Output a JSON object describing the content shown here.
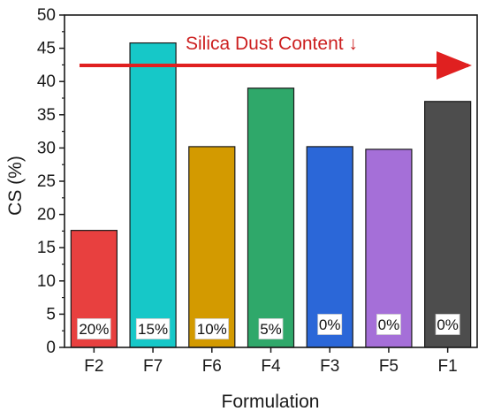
{
  "chart_data": {
    "type": "bar",
    "categories": [
      "F2",
      "F7",
      "F6",
      "F4",
      "F3",
      "F5",
      "F1"
    ],
    "values": [
      17.6,
      45.8,
      30.2,
      39.0,
      30.2,
      29.8,
      37.0
    ],
    "data_labels": [
      "20%",
      "15%",
      "10%",
      "5%",
      "0%",
      "0%",
      "0%"
    ],
    "bar_colors": [
      "#e8403f",
      "#16c8c8",
      "#d39a00",
      "#2fa86a",
      "#2b67d8",
      "#a56fd8",
      "#4d4d4d"
    ],
    "xlabel": "Formulation",
    "ylabel": "CS (%)",
    "ylim": [
      0,
      50
    ],
    "yticks": [
      0,
      5,
      10,
      15,
      20,
      25,
      30,
      35,
      40,
      45,
      50
    ],
    "grid": false,
    "annotation": {
      "text": "Silica Dust Content ↓",
      "color": "#cc1f1f"
    }
  }
}
